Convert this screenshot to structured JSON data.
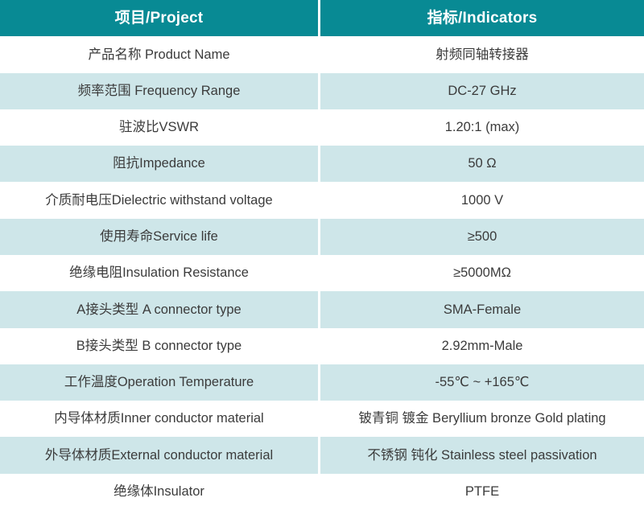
{
  "table": {
    "header": {
      "project": "项目/Project",
      "indicators": "指标/Indicators"
    },
    "rows": [
      {
        "project": "产品名称 Product Name",
        "indicator": "射频同轴转接器"
      },
      {
        "project": "频率范围 Frequency Range",
        "indicator": "DC-27 GHz"
      },
      {
        "project": "驻波比VSWR",
        "indicator": "1.20:1 (max)"
      },
      {
        "project": "阻抗Impedance",
        "indicator": "50 Ω"
      },
      {
        "project": "介质耐电压Dielectric withstand voltage",
        "indicator": "1000 V"
      },
      {
        "project": "使用寿命Service life",
        "indicator": "≥500"
      },
      {
        "project": "绝缘电阻Insulation Resistance",
        "indicator": "≥5000MΩ"
      },
      {
        "project": "A接头类型 A connector type",
        "indicator": "SMA-Female"
      },
      {
        "project": "B接头类型 B connector type",
        "indicator": "2.92mm-Male"
      },
      {
        "project": "工作温度Operation Temperature",
        "indicator": "-55℃ ~ +165℃"
      },
      {
        "project": "内导体材质Inner conductor material",
        "indicator": "铍青铜 镀金 Beryllium bronze Gold plating"
      },
      {
        "project": "外导体材质External conductor material",
        "indicator": "不锈钢 钝化 Stainless steel passivation"
      },
      {
        "project": "绝缘体Insulator",
        "indicator": "PTFE"
      }
    ]
  },
  "colors": {
    "header_bg": "#088A94",
    "alt_row_bg": "#CEE6E9",
    "row_bg": "#FFFFFF",
    "divider": "#FFFFFF",
    "header_text": "#FFFFFF",
    "body_text": "#3B3B3B"
  }
}
